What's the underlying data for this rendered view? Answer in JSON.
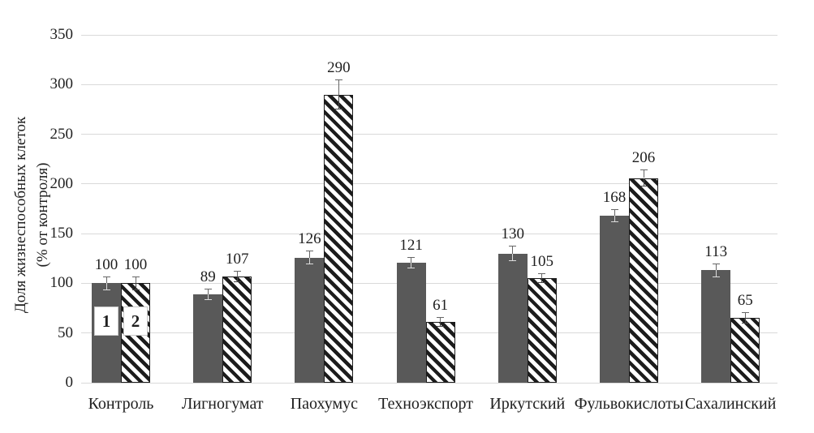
{
  "chart": {
    "y_axis_title_lines": [
      "Доля жизнеспособных клеток",
      "(% от контроля)"
    ],
    "chart_data": {
      "type": "bar",
      "title": "",
      "xlabel": "",
      "ylabel": "Доля жизнеспособных клеток (% от контроля)",
      "categories": [
        "Контроль",
        "Лигногумат",
        "Паохумус",
        "Техноэкспорт",
        "Иркутский",
        "Фульвокислоты",
        "Сахалинский"
      ],
      "series": [
        {
          "name": "1",
          "style": "solid",
          "values": [
            100,
            89,
            126,
            121,
            130,
            168,
            113
          ],
          "errors": [
            6,
            5,
            6,
            5,
            7,
            6,
            6
          ]
        },
        {
          "name": "2",
          "style": "hatched",
          "values": [
            100,
            107,
            290,
            61,
            105,
            206,
            65
          ],
          "errors": [
            6,
            5,
            14,
            4,
            4,
            8,
            5
          ]
        }
      ],
      "ylim": [
        0,
        350
      ],
      "yticks": [
        0,
        50,
        100,
        150,
        200,
        250,
        300,
        350
      ],
      "grid": true,
      "legend_position": "inside-first-group",
      "legend_markers": [
        "1",
        "2"
      ]
    },
    "colors": {
      "solid_bar": "#595959",
      "hatch_stripe": "#1c1c1c",
      "hatch_bg": "#ffffff",
      "gridline": "#d9d9d9",
      "text": "#1f1f1f",
      "error_bar_upper": "#666666",
      "error_bar_lower_on_solid": "#dcdcdc",
      "error_bar_lower_on_hatch": "#444444"
    }
  }
}
